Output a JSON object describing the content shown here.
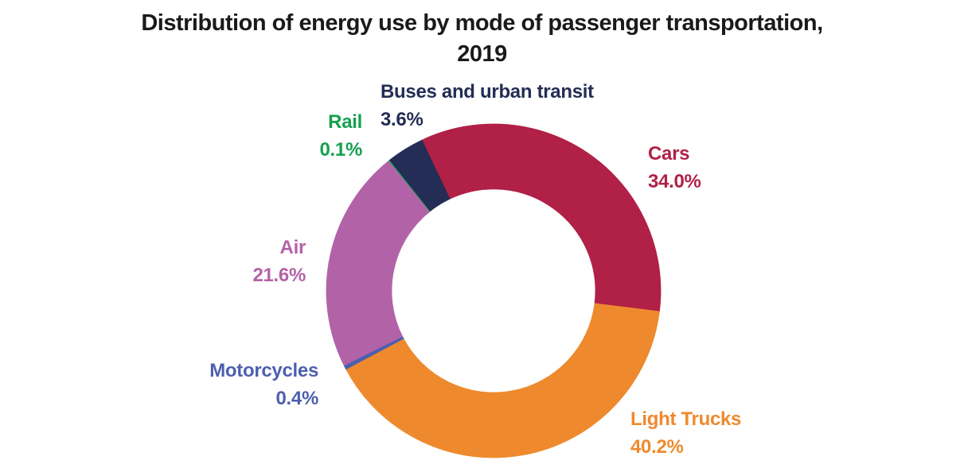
{
  "page": {
    "background_color": "#FFFFFF"
  },
  "title": {
    "line1": "Distribution of energy use by mode of passenger transportation,",
    "line2": "2019",
    "color": "#1A1A1A"
  },
  "chart_data": {
    "type": "pie",
    "subtype": "donut",
    "title": "Distribution of energy use by mode of passenger transportation, 2019",
    "units": "%",
    "direction": "clockwise",
    "start_angle_deg": -25.4,
    "inner_radius_ratio": 0.61,
    "legend_position": "callout-labels-around-ring",
    "slices": [
      {
        "id": "cars",
        "label": "Cars",
        "value": 34.0,
        "display": "34.0%",
        "color": "#B12047"
      },
      {
        "id": "light-trucks",
        "label": "Light Trucks",
        "value": 40.2,
        "display": "40.2%",
        "color": "#EE8A2D"
      },
      {
        "id": "motorcycles",
        "label": "Motorcycles",
        "value": 0.4,
        "display": "0.4%",
        "color": "#4D5FAE"
      },
      {
        "id": "air",
        "label": "Air",
        "value": 21.6,
        "display": "21.6%",
        "color": "#B263A8"
      },
      {
        "id": "rail",
        "label": "Rail",
        "value": 0.1,
        "display": "0.1%",
        "color": "#16A04F"
      },
      {
        "id": "buses-and-urban-transit",
        "label": "Buses and urban transit",
        "value": 3.6,
        "display": "3.6%",
        "color": "#232D55"
      }
    ]
  }
}
